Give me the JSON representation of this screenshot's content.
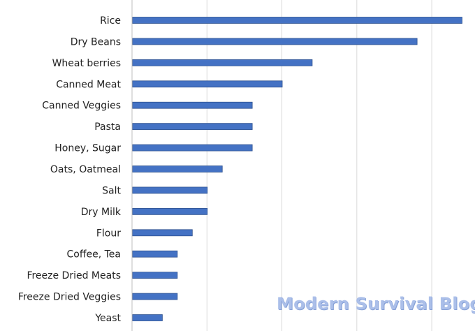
{
  "chart_data": {
    "type": "bar",
    "orientation": "horizontal",
    "categories": [
      "Rice",
      "Dry Beans",
      "Wheat berries",
      "Canned Meat",
      "Canned Veggies",
      "Pasta",
      "Honey, Sugar",
      "Oats, Oatmeal",
      "Salt",
      "Dry Milk",
      "Flour",
      "Coffee, Tea",
      "Freeze Dried Meats",
      "Freeze Dried Veggies",
      "Yeast"
    ],
    "values": [
      22,
      19,
      12,
      10,
      8,
      8,
      8,
      6,
      5,
      5,
      4,
      3,
      3,
      3,
      2
    ],
    "xlim": [
      0,
      22
    ],
    "gridline_step": 5,
    "grid": true,
    "legend": false,
    "bar_color": "#4472c4",
    "bar_edge_color": "#2f528f",
    "grid_color": "#d9d9d9"
  },
  "watermark": "Modern Survival Blog"
}
